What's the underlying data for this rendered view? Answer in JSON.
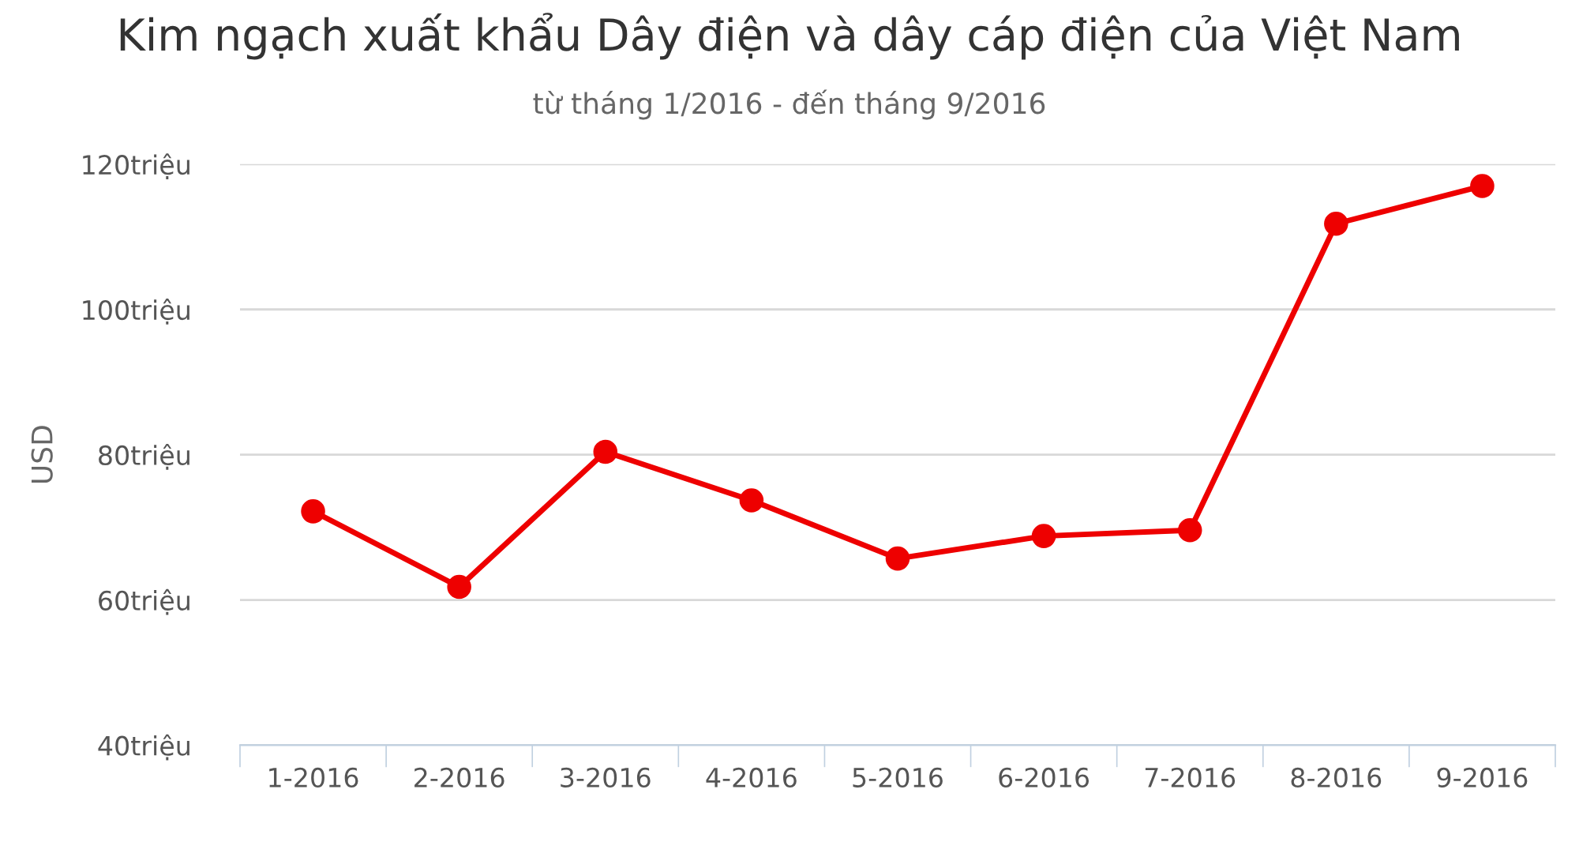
{
  "chart_data": {
    "type": "line",
    "title": "Kim ngạch xuất khẩu Dây điện và dây cáp điện của Việt Nam",
    "subtitle": "từ tháng 1/2016 - đến tháng 9/2016",
    "ylabel": "USD",
    "categories": [
      "1-2016",
      "2-2016",
      "3-2016",
      "4-2016",
      "5-2016",
      "6-2016",
      "7-2016",
      "8-2016",
      "9-2016"
    ],
    "series": [
      {
        "color": "#ee0000",
        "values": [
          72.2,
          61.8,
          80.4,
          73.7,
          65.7,
          68.8,
          69.6,
          111.8,
          117.0
        ]
      }
    ],
    "ylim": [
      40,
      120
    ],
    "yticks": [
      {
        "value": 40,
        "label": "40triệu"
      },
      {
        "value": 60,
        "label": "60triệu"
      },
      {
        "value": 80,
        "label": "80triệu"
      },
      {
        "value": 100,
        "label": "100triệu"
      },
      {
        "value": 120,
        "label": "120triệu"
      }
    ],
    "grid": "y",
    "marker": "circle",
    "line_style": "solid"
  }
}
